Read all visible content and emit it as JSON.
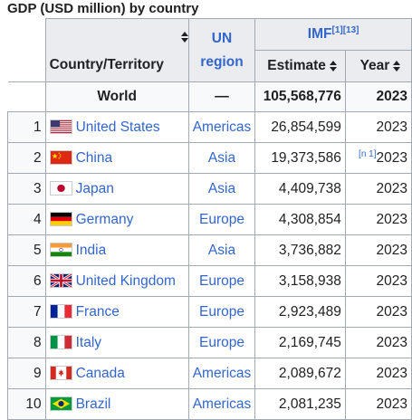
{
  "caption": "GDP (USD million) by country",
  "headers": {
    "country": "Country/Territory",
    "un_region": "UN region",
    "imf": "IMF",
    "imf_refs": "[1][13]",
    "estimate": "Estimate",
    "year": "Year"
  },
  "world": {
    "label": "World",
    "region": "—",
    "estimate": "105,568,776",
    "year": "2023"
  },
  "rows": [
    {
      "rank": "1",
      "country": "United States",
      "region": "Americas",
      "estimate": "26,854,599",
      "note": "",
      "year": "2023",
      "flag": "us"
    },
    {
      "rank": "2",
      "country": "China",
      "region": "Asia",
      "estimate": "19,373,586",
      "note": "[n 1]",
      "year": "2023",
      "flag": "cn"
    },
    {
      "rank": "3",
      "country": "Japan",
      "region": "Asia",
      "estimate": "4,409,738",
      "note": "",
      "year": "2023",
      "flag": "jp"
    },
    {
      "rank": "4",
      "country": "Germany",
      "region": "Europe",
      "estimate": "4,308,854",
      "note": "",
      "year": "2023",
      "flag": "de"
    },
    {
      "rank": "5",
      "country": "India",
      "region": "Asia",
      "estimate": "3,736,882",
      "note": "",
      "year": "2023",
      "flag": "in"
    },
    {
      "rank": "6",
      "country": "United Kingdom",
      "region": "Europe",
      "estimate": "3,158,938",
      "note": "",
      "year": "2023",
      "flag": "gb"
    },
    {
      "rank": "7",
      "country": "France",
      "region": "Europe",
      "estimate": "2,923,489",
      "note": "",
      "year": "2023",
      "flag": "fr"
    },
    {
      "rank": "8",
      "country": "Italy",
      "region": "Europe",
      "estimate": "2,169,745",
      "note": "",
      "year": "2023",
      "flag": "it"
    },
    {
      "rank": "9",
      "country": "Canada",
      "region": "Americas",
      "estimate": "2,089,672",
      "note": "",
      "year": "2023",
      "flag": "ca"
    },
    {
      "rank": "10",
      "country": "Brazil",
      "region": "Americas",
      "estimate": "2,081,235",
      "note": "",
      "year": "2023",
      "flag": "br"
    }
  ],
  "colors": {
    "link": "#3366cc",
    "header_bg": "#eaecf0",
    "border": "#a2a9b1"
  }
}
